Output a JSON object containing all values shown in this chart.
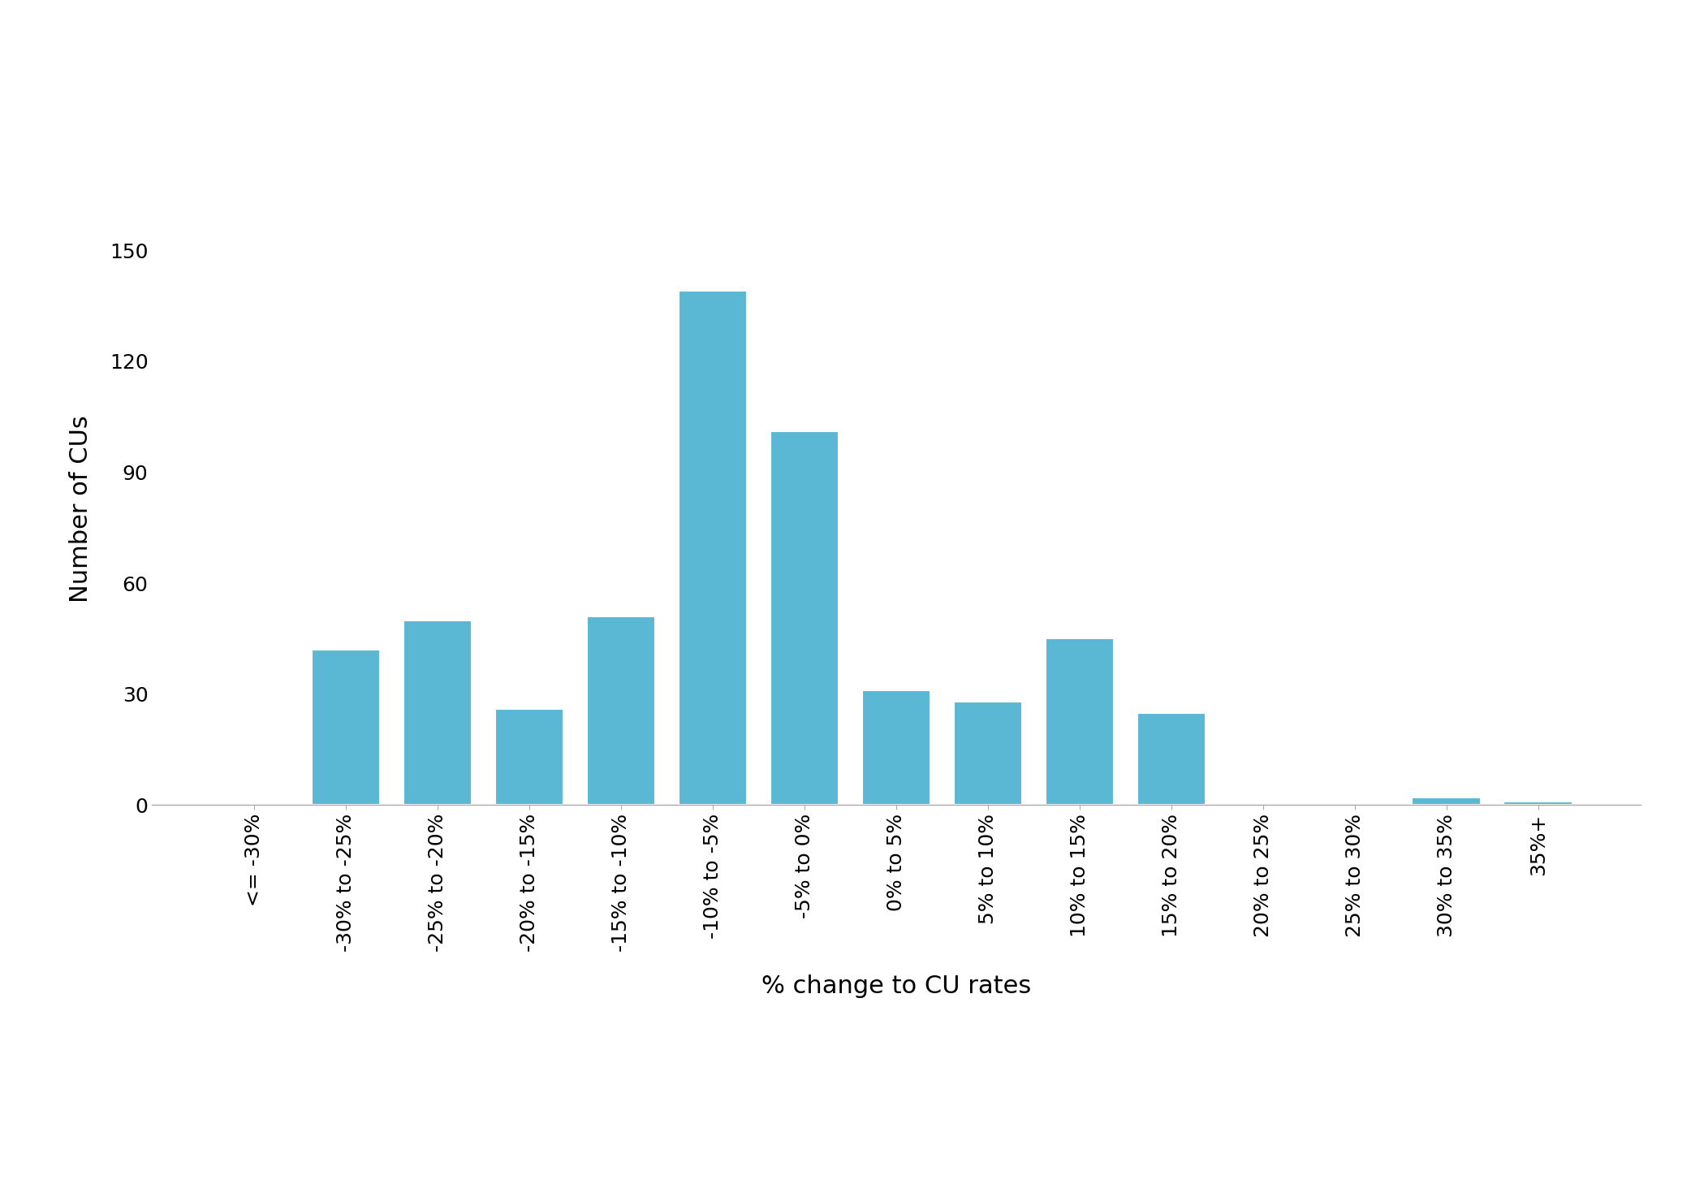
{
  "categories": [
    "<= -30%",
    "-30% to -25%",
    "-25% to -20%",
    "-20% to -15%",
    "-15% to -10%",
    "-10% to -5%",
    "-5% to 0%",
    "0% to 5%",
    "5% to 10%",
    "10% to 15%",
    "15% to 20%",
    "20% to 25%",
    "25% to 30%",
    "30% to 35%",
    "35%+"
  ],
  "values": [
    0,
    42,
    50,
    26,
    51,
    139,
    101,
    31,
    28,
    45,
    25,
    0,
    0,
    2,
    1
  ],
  "bar_color": "#5BB8D4",
  "xlabel": "% change to CU rates",
  "ylabel": "Number of CUs",
  "ylim": [
    0,
    160
  ],
  "yticks": [
    0,
    30,
    60,
    90,
    120,
    150
  ],
  "figsize": [
    20.83,
    14.58
  ],
  "dpi": 100,
  "background_color": "#ffffff",
  "bar_width": 0.75,
  "xlabel_fontsize": 22,
  "ylabel_fontsize": 22,
  "tick_fontsize": 18,
  "xtick_rotation": 90
}
